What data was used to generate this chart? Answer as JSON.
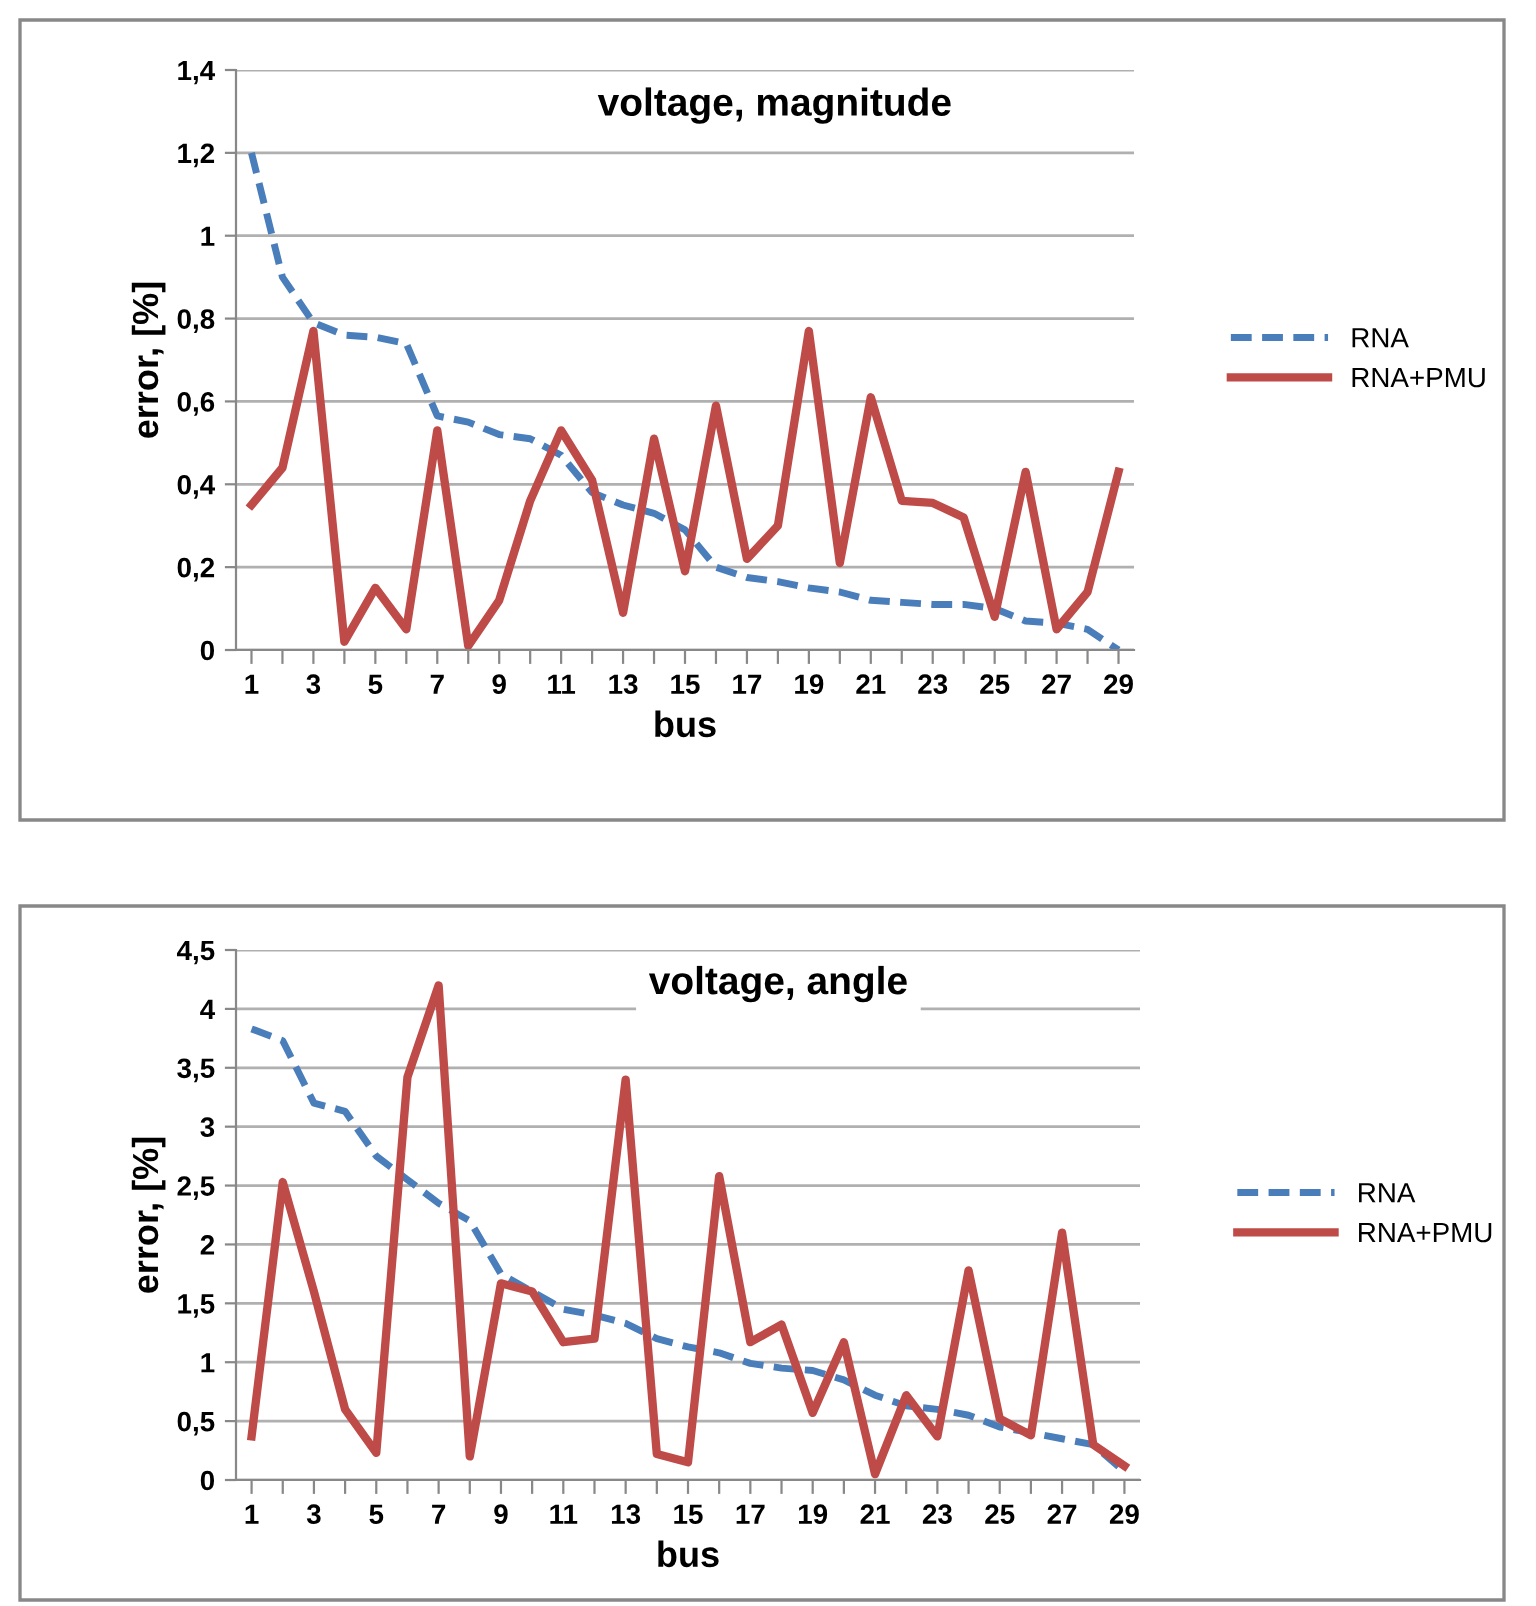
{
  "chart_data": [
    {
      "type": "line",
      "title": "voltage, magnitude",
      "xlabel": "bus",
      "ylabel": "error, [%]",
      "categories": [
        "1",
        null,
        "3",
        null,
        "5",
        null,
        "7",
        null,
        "9",
        null,
        "11",
        null,
        "13",
        null,
        "15",
        null,
        "17",
        null,
        "19",
        null,
        "21",
        null,
        "23",
        null,
        "25",
        null,
        "27",
        null,
        "29"
      ],
      "series": [
        {
          "name": "RNA",
          "color": "#4a7ebb",
          "line_style": "dashed",
          "values": [
            1.2,
            0.9,
            0.79,
            0.76,
            0.755,
            0.74,
            0.565,
            0.55,
            0.52,
            0.51,
            0.47,
            0.38,
            0.35,
            0.33,
            0.29,
            0.2,
            0.175,
            0.165,
            0.15,
            0.14,
            0.12,
            0.115,
            0.11,
            0.11,
            0.1,
            0.07,
            0.065,
            0.05,
            0.0
          ]
        },
        {
          "name": "RNA+PMU",
          "color": "#be4b48",
          "line_style": "solid",
          "values": [
            0.35,
            0.44,
            0.77,
            0.02,
            0.15,
            0.05,
            0.53,
            0.01,
            0.12,
            0.36,
            0.53,
            0.41,
            0.09,
            0.51,
            0.19,
            0.59,
            0.22,
            0.3,
            0.77,
            0.21,
            0.61,
            0.36,
            0.355,
            0.32,
            0.08,
            0.43,
            0.05,
            0.14,
            0.43
          ]
        }
      ],
      "ylim": [
        0,
        1.4
      ],
      "yticks": [
        0,
        {
          "value": 0.2,
          "label": "0,2"
        },
        {
          "value": 0.4,
          "label": "0,4"
        },
        {
          "value": 0.6,
          "label": "0,6"
        },
        {
          "value": 0.8,
          "label": "0,8"
        },
        1,
        {
          "value": 1.2,
          "label": "1,2"
        },
        {
          "value": 1.4,
          "label": "1,4"
        }
      ],
      "grid": "y",
      "legend": "right",
      "marker": "none"
    },
    {
      "type": "line",
      "title": "voltage, angle",
      "xlabel": "bus",
      "ylabel": "error, [%]",
      "categories": [
        "1",
        null,
        "3",
        null,
        "5",
        null,
        "7",
        null,
        "9",
        null,
        "11",
        null,
        "13",
        null,
        "15",
        null,
        "17",
        null,
        "19",
        null,
        "21",
        null,
        "23",
        null,
        "25",
        null,
        "27",
        null,
        "29"
      ],
      "series": [
        {
          "name": "RNA",
          "color": "#4a7ebb",
          "line_style": "dashed",
          "values": [
            3.83,
            3.73,
            3.2,
            3.13,
            2.75,
            2.55,
            2.35,
            2.2,
            1.75,
            1.6,
            1.45,
            1.4,
            1.33,
            1.2,
            1.13,
            1.08,
            0.99,
            0.95,
            0.93,
            0.85,
            0.72,
            0.63,
            0.6,
            0.55,
            0.45,
            0.4,
            0.35,
            0.3,
            0.07
          ]
        },
        {
          "name": "RNA+PMU",
          "color": "#be4b48",
          "line_style": "solid",
          "values": [
            0.37,
            2.53,
            1.6,
            0.6,
            0.23,
            3.42,
            4.2,
            0.2,
            1.67,
            1.6,
            1.17,
            1.2,
            3.4,
            0.22,
            0.15,
            2.58,
            1.17,
            1.32,
            0.57,
            1.17,
            0.05,
            0.72,
            0.37,
            1.78,
            0.52,
            0.38,
            2.1,
            0.3,
            0.12
          ]
        }
      ],
      "ylim": [
        0,
        4.5
      ],
      "yticks": [
        0,
        {
          "value": 0.5,
          "label": "0,5"
        },
        1,
        {
          "value": 1.5,
          "label": "1,5"
        },
        2,
        {
          "value": 2.5,
          "label": "2,5"
        },
        3,
        {
          "value": 3.5,
          "label": "3,5"
        },
        4,
        {
          "value": 4.5,
          "label": "4,5"
        }
      ],
      "grid": "y",
      "legend": "right",
      "marker": "none"
    }
  ]
}
